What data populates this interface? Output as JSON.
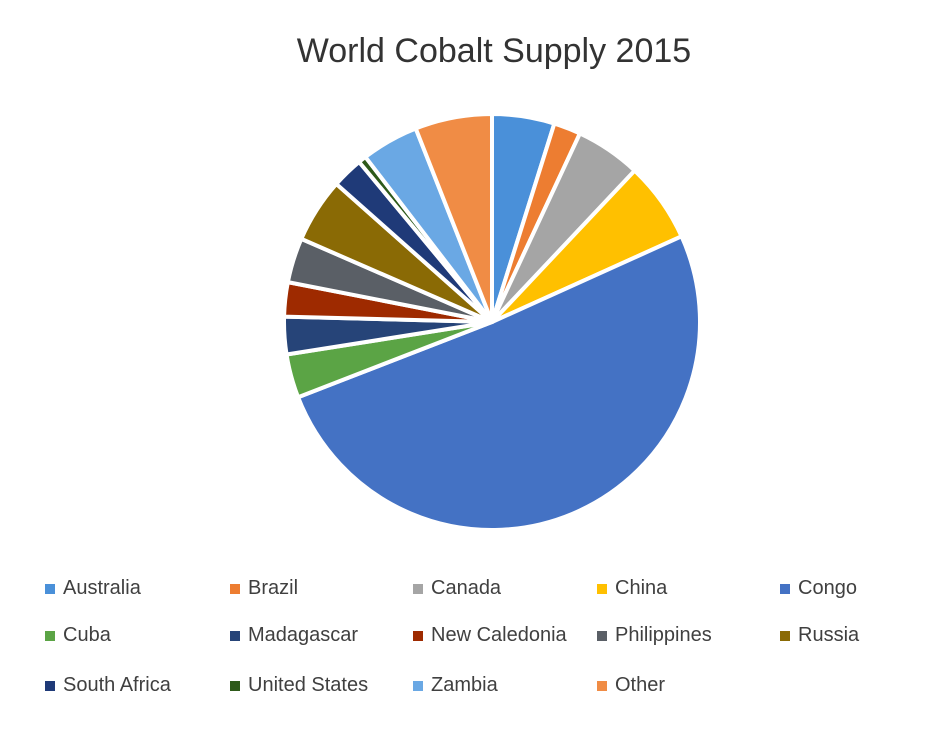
{
  "chart_data": {
    "type": "pie",
    "title": "World Cobalt Supply 2015",
    "categories": [
      "Australia",
      "Brazil",
      "Canada",
      "China",
      "Congo",
      "Cuba",
      "Madagascar",
      "New Caledonia",
      "Philippines",
      "Russia",
      "South Africa",
      "United States",
      "Zambia",
      "Other"
    ],
    "values": [
      6000,
      2600,
      6300,
      7700,
      63000,
      4200,
      3600,
      3300,
      4300,
      6200,
      3000,
      760,
      5500,
      7400
    ],
    "colors": [
      "#4a90d9",
      "#ed7d31",
      "#a5a5a5",
      "#ffc000",
      "#4472c4",
      "#5ba445",
      "#264478",
      "#9e2a00",
      "#5a5f66",
      "#8a6a05",
      "#1f3a78",
      "#2e5a1a",
      "#6aa8e4",
      "#f08c45"
    ],
    "start_angle": "top",
    "direction": "clockwise",
    "legend_position": "bottom"
  }
}
